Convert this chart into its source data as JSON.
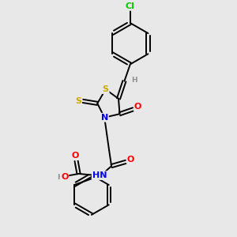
{
  "background_color": "#e8e8e8",
  "atom_colors": {
    "C": "#000000",
    "H": "#909090",
    "N": "#0000ee",
    "O": "#ff0000",
    "S": "#ccaa00",
    "Cl": "#00cc00"
  },
  "bond_color": "#000000",
  "bond_width": 1.4,
  "font_size_atom": 8.0,
  "font_size_small": 6.5,
  "xlim": [
    0,
    10
  ],
  "ylim": [
    0,
    10
  ]
}
